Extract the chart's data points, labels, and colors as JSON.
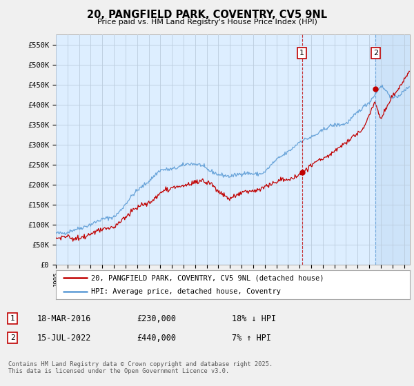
{
  "title": "20, PANGFIELD PARK, COVENTRY, CV5 9NL",
  "subtitle": "Price paid vs. HM Land Registry's House Price Index (HPI)",
  "ylabel_ticks": [
    "£0",
    "£50K",
    "£100K",
    "£150K",
    "£200K",
    "£250K",
    "£300K",
    "£350K",
    "£400K",
    "£450K",
    "£500K",
    "£550K"
  ],
  "ytick_values": [
    0,
    50000,
    100000,
    150000,
    200000,
    250000,
    300000,
    350000,
    400000,
    450000,
    500000,
    550000
  ],
  "ylim": [
    0,
    575000
  ],
  "xlim_start": 1995.0,
  "xlim_end": 2025.5,
  "hpi_color": "#5b9bd5",
  "price_color": "#c00000",
  "transaction1_date": 2016.21,
  "transaction1_price": 230000,
  "transaction2_date": 2022.54,
  "transaction2_price": 440000,
  "legend_line1": "20, PANGFIELD PARK, COVENTRY, CV5 9NL (detached house)",
  "legend_line2": "HPI: Average price, detached house, Coventry",
  "info1_date": "18-MAR-2016",
  "info1_price": "£230,000",
  "info1_hpi": "18% ↓ HPI",
  "info2_date": "15-JUL-2022",
  "info2_price": "£440,000",
  "info2_hpi": "7% ↑ HPI",
  "footer": "Contains HM Land Registry data © Crown copyright and database right 2025.\nThis data is licensed under the Open Government Licence v3.0.",
  "fig_bg_color": "#f0f0f0",
  "plot_bg_color": "#ddeeff",
  "grid_color": "#bbccdd"
}
